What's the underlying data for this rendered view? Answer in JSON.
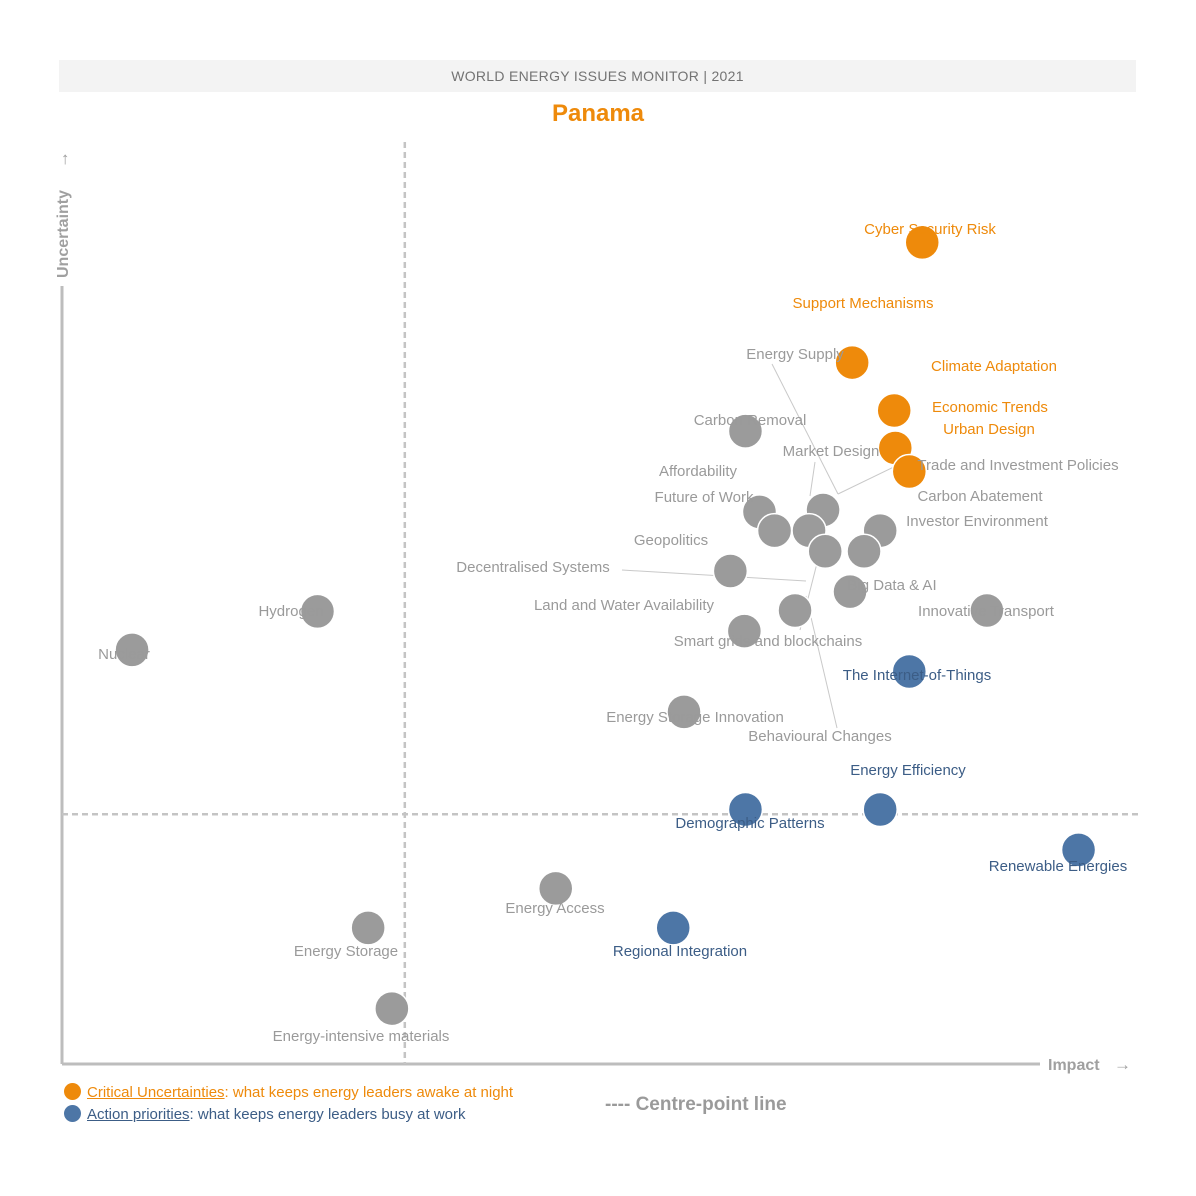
{
  "header": "WORLD ENERGY ISSUES MONITOR | 2021",
  "country": "Panama",
  "colors": {
    "critical": "#ee8a0b",
    "action": "#4d76a6",
    "other": "#9b9b9b",
    "axis": "#bdbdbd"
  },
  "legend": {
    "critical_link": "Critical Uncertainties",
    "critical_rest": ": what keeps energy leaders awake at night",
    "action_link": "Action priorities",
    "action_rest": ": what keeps energy leaders busy at work",
    "centre": "---- Centre-point line"
  },
  "chart_data": {
    "type": "scatter",
    "xlabel": "Impact",
    "ylabel": "Uncertainty",
    "xlim": [
      0,
      100
    ],
    "ylim": [
      0,
      100
    ],
    "centre_x": 31.8,
    "centre_y": 26.6,
    "grid": false,
    "legend_position": "bottom-left",
    "points": [
      {
        "name": "Cyber Security Risk",
        "x": 79.8,
        "y": 87.5,
        "cat": "critical"
      },
      {
        "name": "Support Mechanisms",
        "x": 73.3,
        "y": 74.7,
        "cat": "critical"
      },
      {
        "name": "Climate Adaptation",
        "x": 77.2,
        "y": 69.6,
        "cat": "critical"
      },
      {
        "name": "Economic Trends",
        "x": 77.3,
        "y": 65.6,
        "cat": "critical"
      },
      {
        "name": "Urban Design",
        "x": 78.6,
        "y": 63.1,
        "cat": "critical"
      },
      {
        "name": "Energy Supply",
        "x": 63.4,
        "y": 67.4,
        "cat": "other"
      },
      {
        "name": "Carbon Removal",
        "x": 63.4,
        "y": 67.4,
        "cat": "other"
      },
      {
        "name": "Market Design",
        "x": 70.6,
        "y": 59.0,
        "cat": "other"
      },
      {
        "name": "Affordability",
        "x": 64.7,
        "y": 58.8,
        "cat": "other"
      },
      {
        "name": "Future of Work",
        "x": 66.1,
        "y": 56.8,
        "cat": "other"
      },
      {
        "name": "Trade and Investment Policies",
        "x": 69.3,
        "y": 56.8,
        "cat": "other"
      },
      {
        "name": "Carbon Abatement",
        "x": 75.9,
        "y": 56.8,
        "cat": "other"
      },
      {
        "name": "Investor Environment",
        "x": 74.4,
        "y": 54.6,
        "cat": "other"
      },
      {
        "name": "Geopolitics",
        "x": 62.0,
        "y": 52.5,
        "cat": "other"
      },
      {
        "name": "Decentralised Systems",
        "x": 68.0,
        "y": 48.3,
        "cat": "other"
      },
      {
        "name": "Big Data & AI",
        "x": 73.1,
        "y": 50.3,
        "cat": "other"
      },
      {
        "name": "Innovative Transport",
        "x": 85.8,
        "y": 48.3,
        "cat": "other"
      },
      {
        "name": "Land and Water Availability",
        "x": 63.3,
        "y": 46.1,
        "cat": "other"
      },
      {
        "name": "Smart grids and blockchains",
        "x": 68.0,
        "y": 48.3,
        "cat": "other"
      },
      {
        "name": "Behavioural Changes",
        "x": 70.8,
        "y": 54.6,
        "cat": "other"
      },
      {
        "name": "Hydrogen",
        "x": 23.7,
        "y": 48.2,
        "cat": "other"
      },
      {
        "name": "Nuclear",
        "x": 6.5,
        "y": 44.1,
        "cat": "other"
      },
      {
        "name": "Energy Storage Innovation",
        "x": 57.7,
        "y": 37.5,
        "cat": "other"
      },
      {
        "name": "The Internet-of-Things",
        "x": 78.6,
        "y": 41.8,
        "cat": "action"
      },
      {
        "name": "Energy Efficiency",
        "x": 75.9,
        "y": 27.1,
        "cat": "action"
      },
      {
        "name": "Demographic Patterns",
        "x": 63.4,
        "y": 27.1,
        "cat": "action"
      },
      {
        "name": "Renewable Energies",
        "x": 94.3,
        "y": 22.8,
        "cat": "action"
      },
      {
        "name": "Energy Access",
        "x": 45.8,
        "y": 18.7,
        "cat": "other"
      },
      {
        "name": "Regional Integration",
        "x": 56.7,
        "y": 14.5,
        "cat": "action"
      },
      {
        "name": "Energy Storage",
        "x": 28.4,
        "y": 14.5,
        "cat": "other"
      },
      {
        "name": "Energy-intensive materials",
        "x": 30.6,
        "y": 5.9,
        "cat": "other"
      }
    ]
  }
}
